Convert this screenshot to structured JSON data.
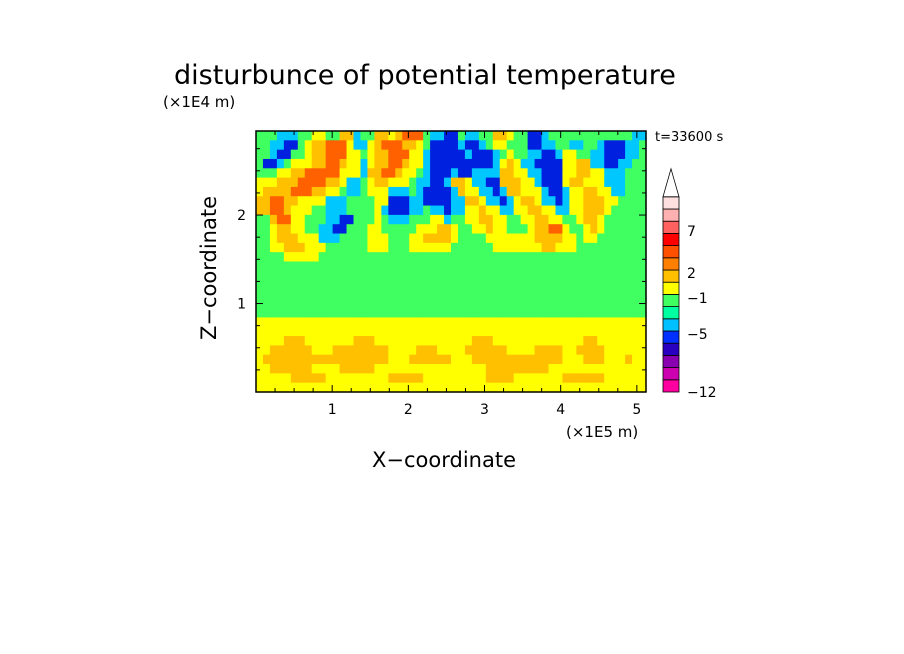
{
  "chart_data": {
    "type": "heatmap",
    "title": "disturbunce of potential temperature",
    "xlabel": "X−coordinate",
    "ylabel": "Z−coordinate",
    "x_unit": "(×1E5 m)",
    "y_unit": "(×1E4 m)",
    "time_label": "t=33600 s",
    "xlim": [
      0,
      5.12
    ],
    "ylim": [
      0,
      2.95
    ],
    "x_ticks": [
      1,
      2,
      3,
      4,
      5
    ],
    "y_ticks": [
      1,
      2
    ],
    "colorbar": {
      "ticks": [
        "7",
        "2",
        "−1",
        "−5",
        "−12"
      ],
      "colors": [
        "#ff00a0",
        "#cc00b0",
        "#8800b0",
        "#2a00c0",
        "#0030ff",
        "#00c0ff",
        "#00ffa0",
        "#40ff60",
        "#ffff00",
        "#ffc000",
        "#ff8000",
        "#ff5000",
        "#ff0000",
        "#ff6060",
        "#ffb0b0",
        "#ffe0e0"
      ]
    },
    "field_rows": [
      "GGGCCCGGYYGGOOCGGOOYORRRGCCBBGCCGGOOYGGBBCGGGGGGGGGGGGCC",
      "GGCCBBGYOORRRYCCYORRROOYGBBBBCBBCGYYGGGBBCCGGCCGGCBBBCCG",
      "GGCBBGGYOORRRYYGYOORRRYYCBBBBBCBBBCGYGGCCBBCYYGGCCBBBCCG",
      "GBBCGYYYOORROYYCYOORROYYCBBBBBBBBBCYOYCCBBBBYYOOCCBBCCGG",
      "GGGYYOORRRRRYYYCOORROYYGCBBBCBBCCCCOOYYCCBBBYYOOYYCCCGGG",
      "YYYOOORRRROOYCCGYOOYYYGCCBBCOOYCCBBOOOYYCBBBYOOYYYCCCGGG",
      "YOOOORRROOYYGCCGYYYCCCGCBBBBCOYYCCBCOOYYYCBBCYYOOYYCCGGG",
      "OORROOYYYYCCCGGGGYYBBBCCBBBBCCOOYCCBCYOOYCCBCYYOOOYYGGGG",
      "OORROYYYGGCCCGGGGYCBBBCCGCCBCCYYOYYCCYYOOYYCCYYOOOYGGGGG",
      "GGORRYYGGGCCBBGGGYGCCCGGGYYCGGYYOOYYGGYYOOYYGGYOOYGGGGGG",
      "GGYOOYYGGCCBBGGGYYGGGGGYYYOOYGGYYOYYGGGYOORRYGGYOYGGGGGG",
      "GGYOOOYYYCCCGGGGYYYGGGYYOOOOYGGGGYYYYYYYOOOOYYGYYGGGGGGG",
      "GGYYOOOYYYGGGGGGYYYGGGYYYYYYGGGGGGYYYYYYYOOYYYGGGGGGGGGG",
      "GGGGYYYYYGGGGGGGGGGGGGGGGGGGGGGGGGGGGGGGGGGGGGGGGGGGGGGG",
      "GGGGGGGGGGGGGGGGGGGGGGGGGGGGGGGGGGGGGGGGGGGGGGGGGGGGGGGG",
      "GGGGGGGGGGGGGGGGGGGGGGGGGGGGGGGGGGGGGGGGGGGGGGGGGGGGGGGG",
      "GGGGGGGGGGGGGGGGGGGGGGGGGGGGGGGGGGGGGGGGGGGGGGGGGGGGGGGG",
      "GGGGGGGGGGGGGGGGGGGGGGGGGGGGGGGGGGGGGGGGGGGGGGGGGGGGGGGG",
      "GGGGGGGGGGGGGGGGGGGGGGGGGGGGGGGGGGGGGGGGGGGGGGGGGGGGGGGG",
      "GGGGGGGGGGGGGGGGGGGGGGGGGGGGGGGGGGGGGGGGGGGGGGGGGGGGGGGG",
      "YYYYYYYYYYYYYYYYYYYYYYYYYYYYYYYYYYYYYYYYYYYYYYYYYYYYYYYY",
      "YYYYYYYYYYYYYYYYYYYYYYYYYYYYYYYYYYYYYYYYYYYYYYYYYYYYYYYY",
      "YYYYOOOYYYYYYYOOOYYYYYYYYYYYYYYOOOYYYYYYYYYYYYYOOYYYYYYY",
      "YYOOOOOOYYYOOOOOOOOYYYYOOOYYYYOOOOOOYYYYOOOOYYOOOOYYYYYY",
      "YOOOOOOOOOOOOOOOOOOYYYOOOOOOYYYOOOOOOOOOOOOOYYYOOOYYYOYY",
      "YYOOOOOOYYYYOOOOOYYYYYYYYYYYYYYYYOOOOOOOOOYYYYYYYYYYYYYY",
      "YYYYYOOOOOYYYYYYYYYOOOOOYYYYYYYYYOOOOYYYYYYYOOOOOOYYYYYY",
      "YYYYYYYYYYYYYYYYYYYYYYYYYYYYYYYYYYYYYYYYYYYYYYYYYYYYYYYY"
    ],
    "legend_key": {
      "G": "#40ff60",
      "C": "#00c8ff",
      "Y": "#ffff00",
      "O": "#ffc000",
      "R": "#ff6000",
      "B": "#0020e0"
    }
  }
}
